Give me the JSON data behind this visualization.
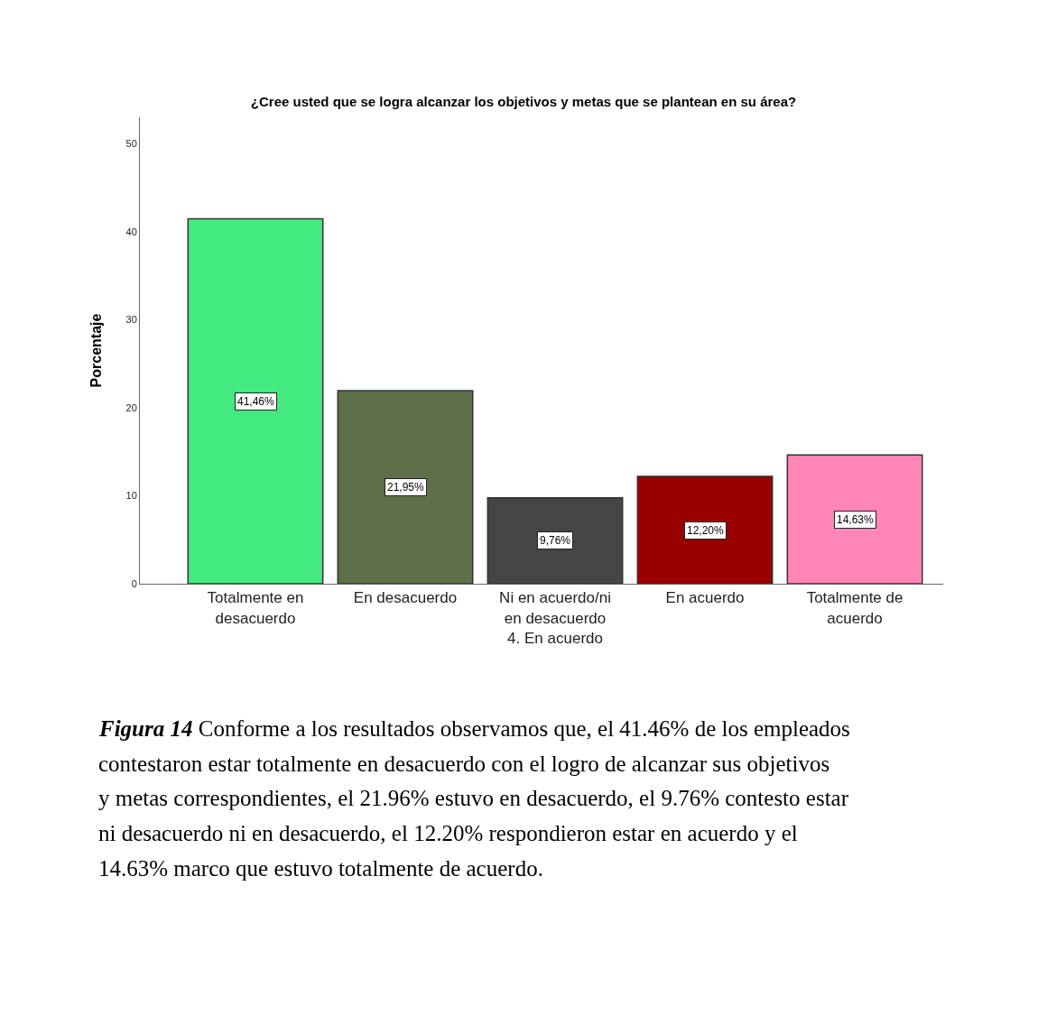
{
  "chart_data": {
    "type": "bar",
    "title": "¿Cree usted que se logra alcanzar los objetivos y metas que se plantean en su área?",
    "ylabel": "Porcentaje",
    "categories": [
      "Totalmente en desacuerdo",
      "En desacuerdo",
      "Ni en acuerdo/ni en desacuerdo\n4. En acuerdo",
      "En acuerdo",
      "Totalmente de acuerdo"
    ],
    "values": [
      41.46,
      21.95,
      9.76,
      12.2,
      14.63
    ],
    "colors": [
      "#42ea7f",
      "#5d7049",
      "#454547",
      "#990000",
      "#ff86b7"
    ],
    "value_labels": [
      "41,46%",
      "21,95%",
      "9,76%",
      "12,20%",
      "14,63%"
    ],
    "ylim": [
      0,
      53
    ],
    "yticks": [
      0,
      10,
      20,
      30,
      40,
      50
    ],
    "grid": false,
    "annotations": [
      "Figura 14",
      "Conforme a los resultados observamos que, el 41.46% de los empleados contestaron estar totalmente en desacuerdo con el logro de alcanzar sus objetivos y metas correspondientes, el 21.96% estuvo en desacuerdo, el 9.76% contesto estar ni desacuerdo ni en desacuerdo, el 12.20% respondieron estar en acuerdo y el 14.63% marco que estuvo totalmente de acuerdo."
    ]
  }
}
